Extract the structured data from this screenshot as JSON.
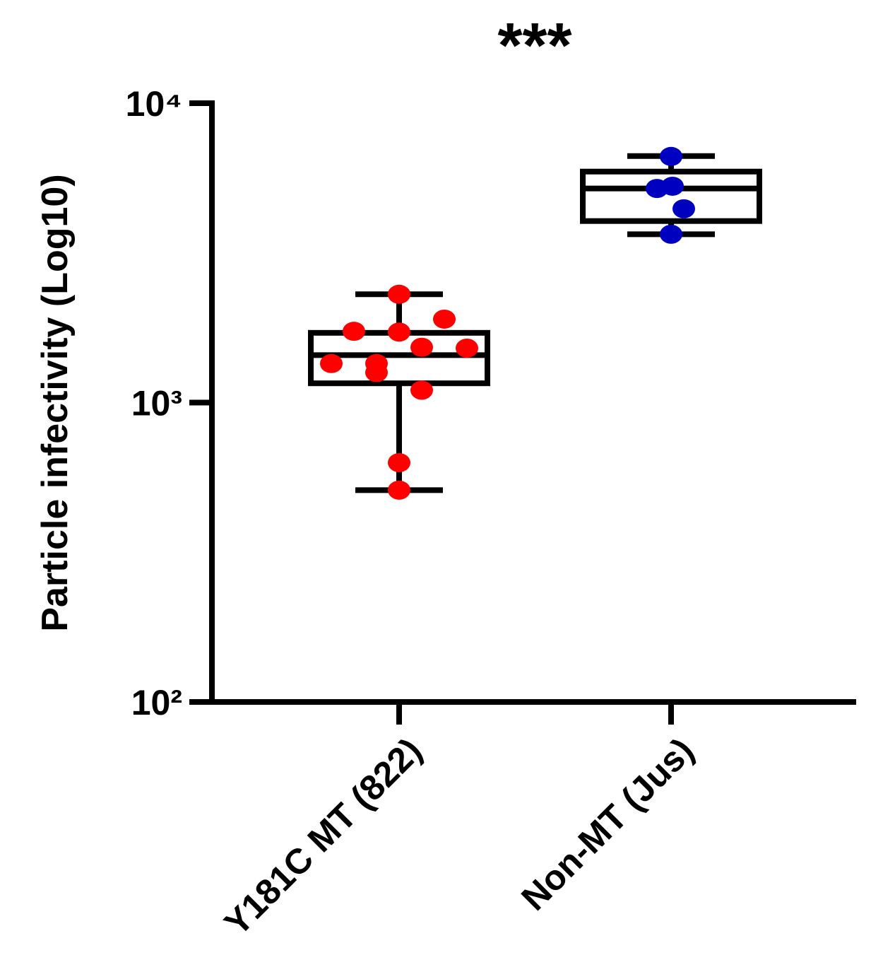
{
  "chart_data": {
    "type": "box",
    "annotation": "***",
    "y_label": "Particle infectivity (Log10)",
    "log_scale": true,
    "ylim": [
      100,
      10000
    ],
    "yticks": [
      {
        "value": 100,
        "label": "10²"
      },
      {
        "value": 1000,
        "label": "10³"
      },
      {
        "value": 10000,
        "label": "10⁴"
      }
    ],
    "categories": [
      "Y181C MT (822)",
      "Non-MT (Jus)"
    ],
    "boxes": [
      {
        "color": "#ff0000",
        "min": 510,
        "q1": 1160,
        "median": 1440,
        "q3": 1710,
        "max": 2300,
        "points": [
          2300,
          1730,
          1720,
          1900,
          1530,
          1520,
          1350,
          1350,
          1260,
          1100,
          630,
          510
        ]
      },
      {
        "color": "#0000c0",
        "min": 3650,
        "q1": 4040,
        "median": 5190,
        "q3": 5910,
        "max": 6660,
        "points": [
          6640,
          5190,
          5280,
          4440,
          3650
        ]
      }
    ]
  }
}
